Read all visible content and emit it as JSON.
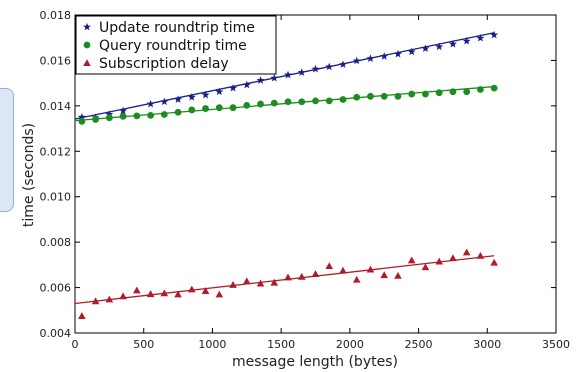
{
  "chart_data": {
    "type": "scatter",
    "xlabel": "message length (bytes)",
    "ylabel": "time (seconds)",
    "xlim": [
      0,
      3500
    ],
    "ylim": [
      0.004,
      0.018
    ],
    "xticks": [
      0,
      500,
      1000,
      1500,
      2000,
      2500,
      3000,
      3500
    ],
    "yticks": [
      0.004,
      0.006,
      0.008,
      0.01,
      0.012,
      0.014,
      0.016,
      0.018
    ],
    "legend_position": "top-left",
    "grid": false,
    "series": [
      {
        "name": "Update roundtrip time",
        "color": "#1b1f8a",
        "marker": "star",
        "x": [
          50,
          150,
          250,
          350,
          550,
          650,
          750,
          850,
          950,
          1050,
          1150,
          1250,
          1350,
          1450,
          1550,
          1650,
          1750,
          1850,
          1950,
          2050,
          2150,
          2250,
          2350,
          2450,
          2550,
          2650,
          2750,
          2850,
          2950,
          3050
        ],
        "y": [
          0.0135,
          0.01348,
          0.01362,
          0.01378,
          0.01408,
          0.01418,
          0.01428,
          0.01438,
          0.01448,
          0.01462,
          0.01478,
          0.01492,
          0.01512,
          0.01522,
          0.01536,
          0.01547,
          0.01562,
          0.01572,
          0.01582,
          0.01598,
          0.01608,
          0.01618,
          0.01628,
          0.01638,
          0.01652,
          0.0166,
          0.01672,
          0.01685,
          0.01698,
          0.01712
        ],
        "fit": [
          0.01342,
          0.01722
        ]
      },
      {
        "name": "Query roundtrip time",
        "color": "#1e8c1e",
        "marker": "circle",
        "x": [
          50,
          150,
          250,
          350,
          450,
          550,
          650,
          750,
          850,
          950,
          1050,
          1150,
          1250,
          1350,
          1450,
          1550,
          1650,
          1750,
          1850,
          1950,
          2050,
          2150,
          2250,
          2350,
          2450,
          2550,
          2650,
          2750,
          2850,
          2950,
          3050
        ],
        "y": [
          0.01332,
          0.0134,
          0.01348,
          0.01354,
          0.01356,
          0.01358,
          0.01362,
          0.01372,
          0.01382,
          0.01388,
          0.01392,
          0.01392,
          0.01402,
          0.01408,
          0.01412,
          0.01418,
          0.01418,
          0.01422,
          0.01422,
          0.01428,
          0.01438,
          0.01442,
          0.01442,
          0.01442,
          0.01452,
          0.01452,
          0.01458,
          0.01462,
          0.01462,
          0.01472,
          0.01478
        ],
        "fit": [
          0.01335,
          0.01485
        ]
      },
      {
        "name": "Subscription delay",
        "color": "#b01c2a",
        "marker": "triangle",
        "x": [
          50,
          150,
          250,
          350,
          450,
          550,
          650,
          750,
          850,
          950,
          1050,
          1150,
          1250,
          1350,
          1450,
          1550,
          1650,
          1750,
          1850,
          1950,
          2050,
          2150,
          2250,
          2350,
          2450,
          2550,
          2650,
          2750,
          2850,
          2950,
          3050
        ],
        "y": [
          0.00475,
          0.0054,
          0.00548,
          0.00562,
          0.00588,
          0.00572,
          0.00575,
          0.0057,
          0.00592,
          0.00585,
          0.0057,
          0.00612,
          0.00628,
          0.00618,
          0.00622,
          0.00645,
          0.00648,
          0.0066,
          0.00695,
          0.00675,
          0.00635,
          0.0068,
          0.00655,
          0.00652,
          0.0072,
          0.0069,
          0.00715,
          0.0073,
          0.00755,
          0.0074,
          0.0071
        ],
        "fit": [
          0.0053,
          0.0074
        ]
      }
    ]
  }
}
